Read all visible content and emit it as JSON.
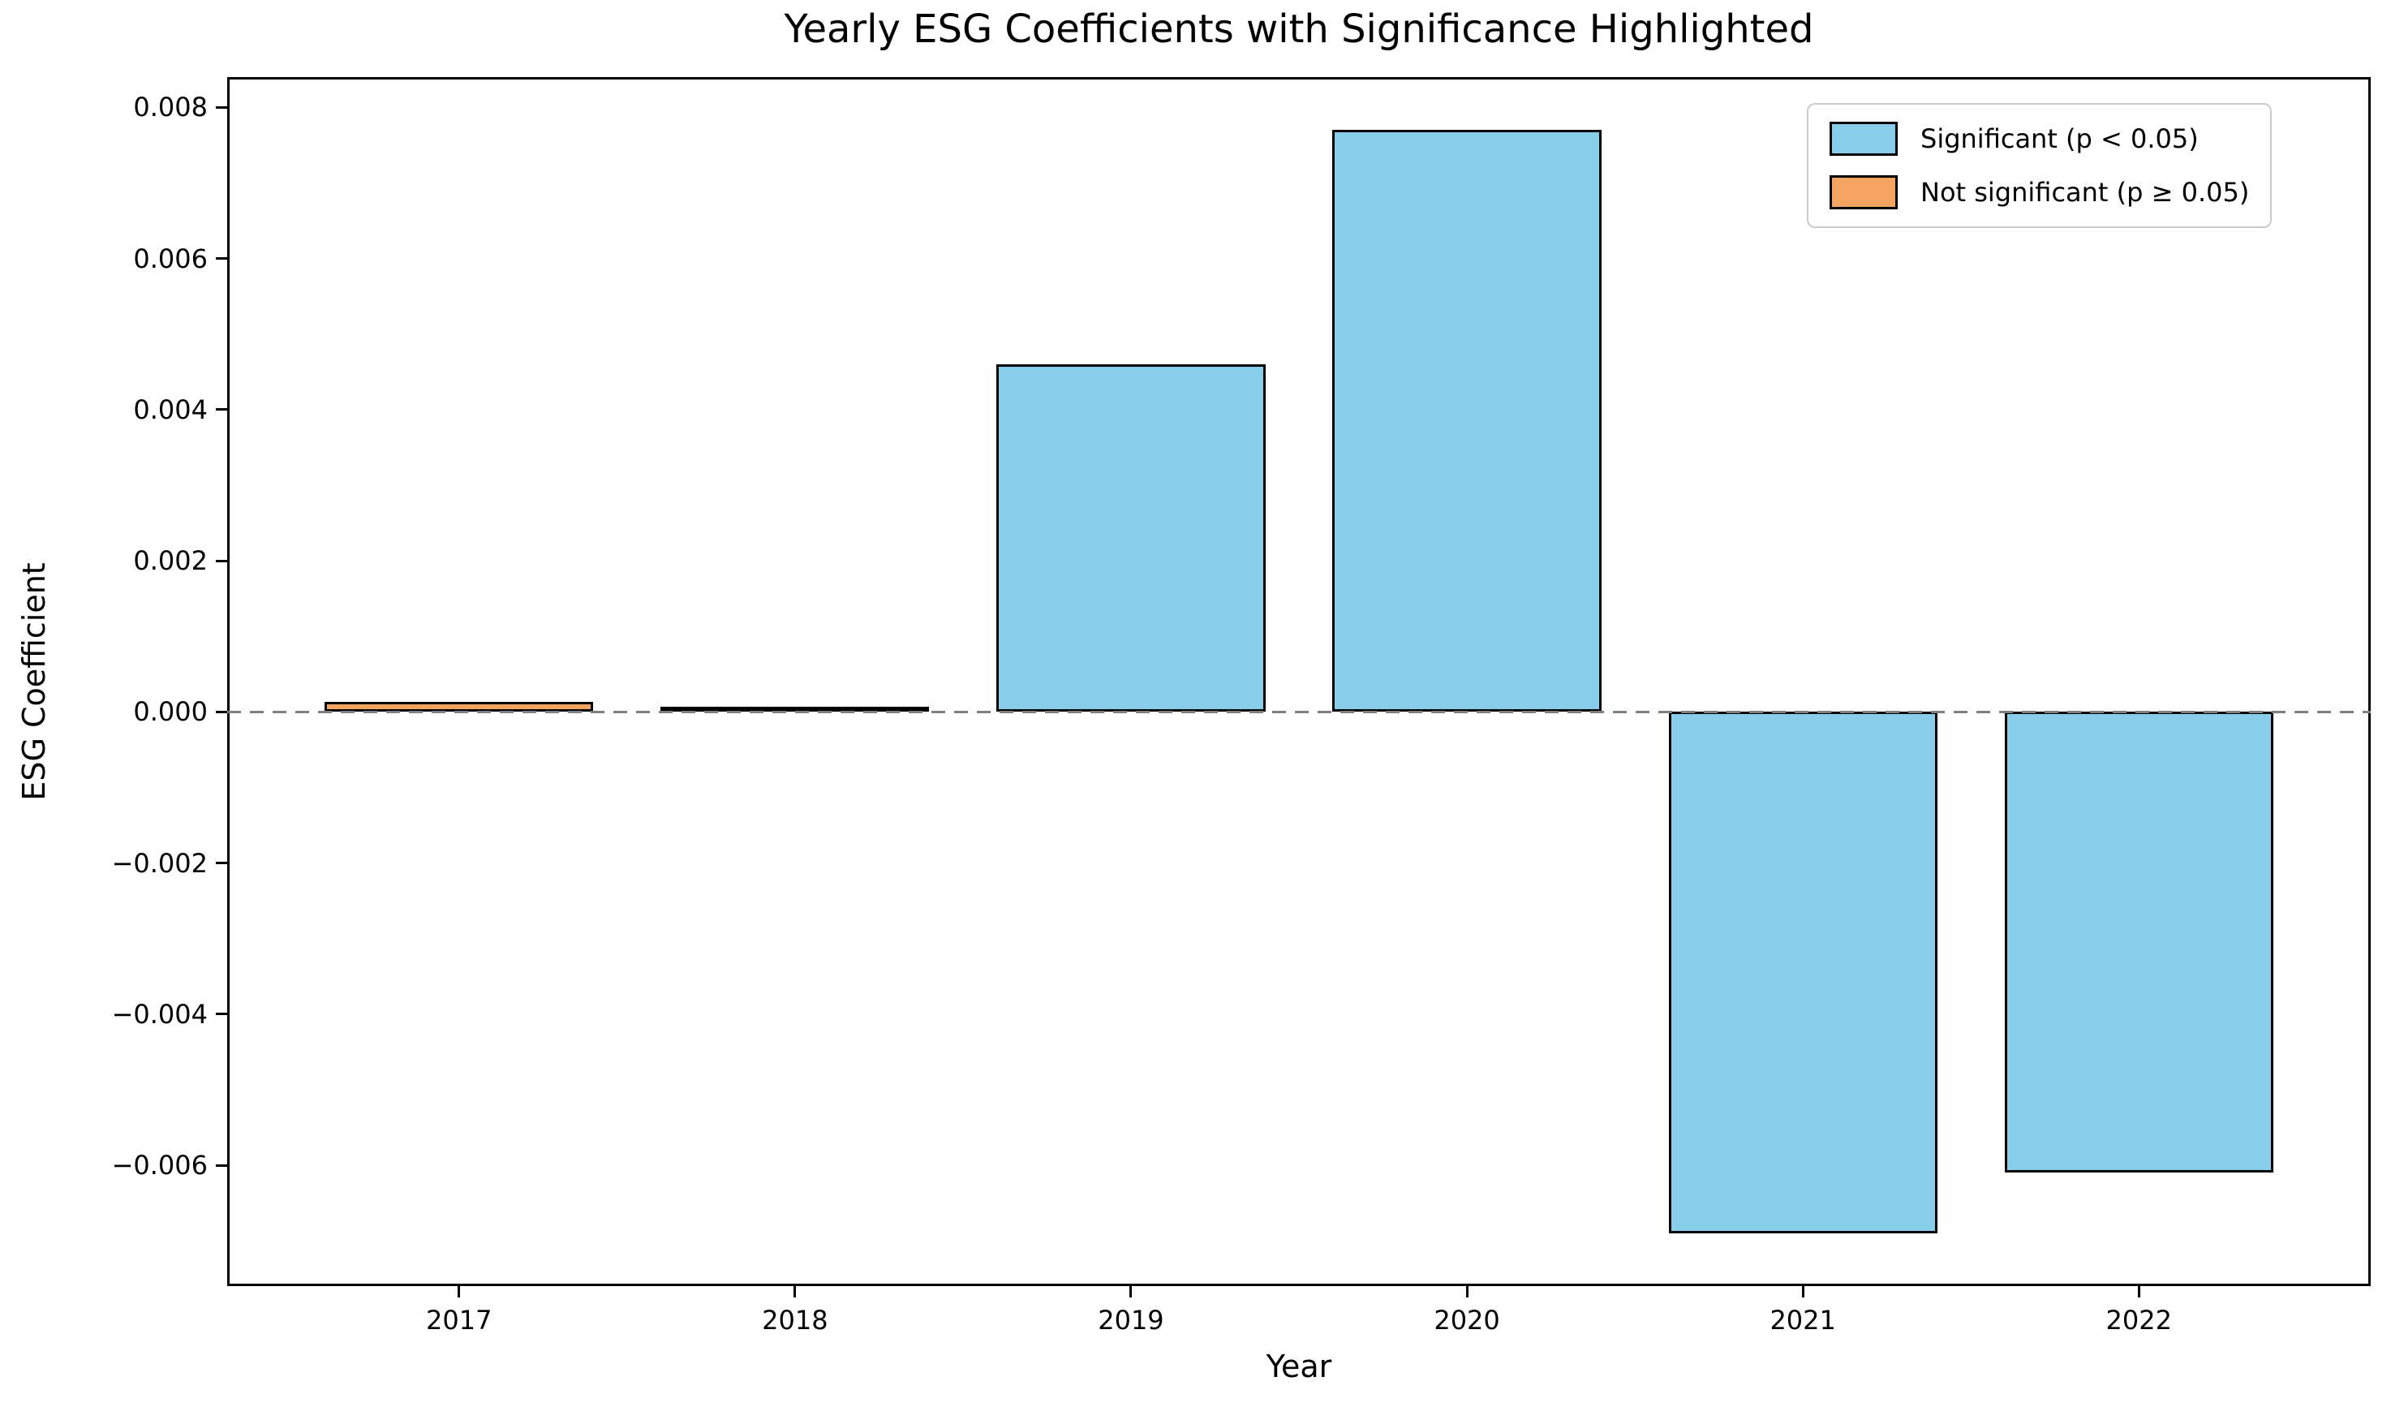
{
  "chart_data": {
    "type": "bar",
    "title": "Yearly ESG Coefficients with Significance Highlighted",
    "xlabel": "Year",
    "ylabel": "ESG Coefficient",
    "categories": [
      "2017",
      "2018",
      "2019",
      "2020",
      "2021",
      "2022"
    ],
    "series": [
      {
        "name": "ESG Coefficient",
        "values": [
          0.00013,
          4e-05,
          0.0046,
          0.0077,
          -0.0069,
          -0.0061
        ]
      }
    ],
    "significant": [
      false,
      false,
      true,
      true,
      true,
      true
    ],
    "colors": {
      "significant": "#87CEEB",
      "not_significant": "#F4A460",
      "bar_edge": "#000000",
      "zero_line": "#808080"
    },
    "legend": {
      "position": "upper right",
      "entries": [
        {
          "label": "Significant (p < 0.05)",
          "color": "#87CEEB"
        },
        {
          "label": "Not significant (p ≥ 0.05)",
          "color": "#F4A460"
        }
      ]
    },
    "y_ticks": {
      "values": [
        0.008,
        0.006,
        0.004,
        0.002,
        0.0,
        -0.002,
        -0.004,
        -0.006
      ],
      "labels": [
        "0.008",
        "0.006",
        "0.004",
        "0.002",
        "0.000",
        "−0.002",
        "−0.004",
        "−0.006"
      ]
    },
    "ylim": [
      -0.0076,
      0.0084
    ],
    "zero_line": {
      "y": 0,
      "style": "dashed"
    },
    "grid": false
  }
}
